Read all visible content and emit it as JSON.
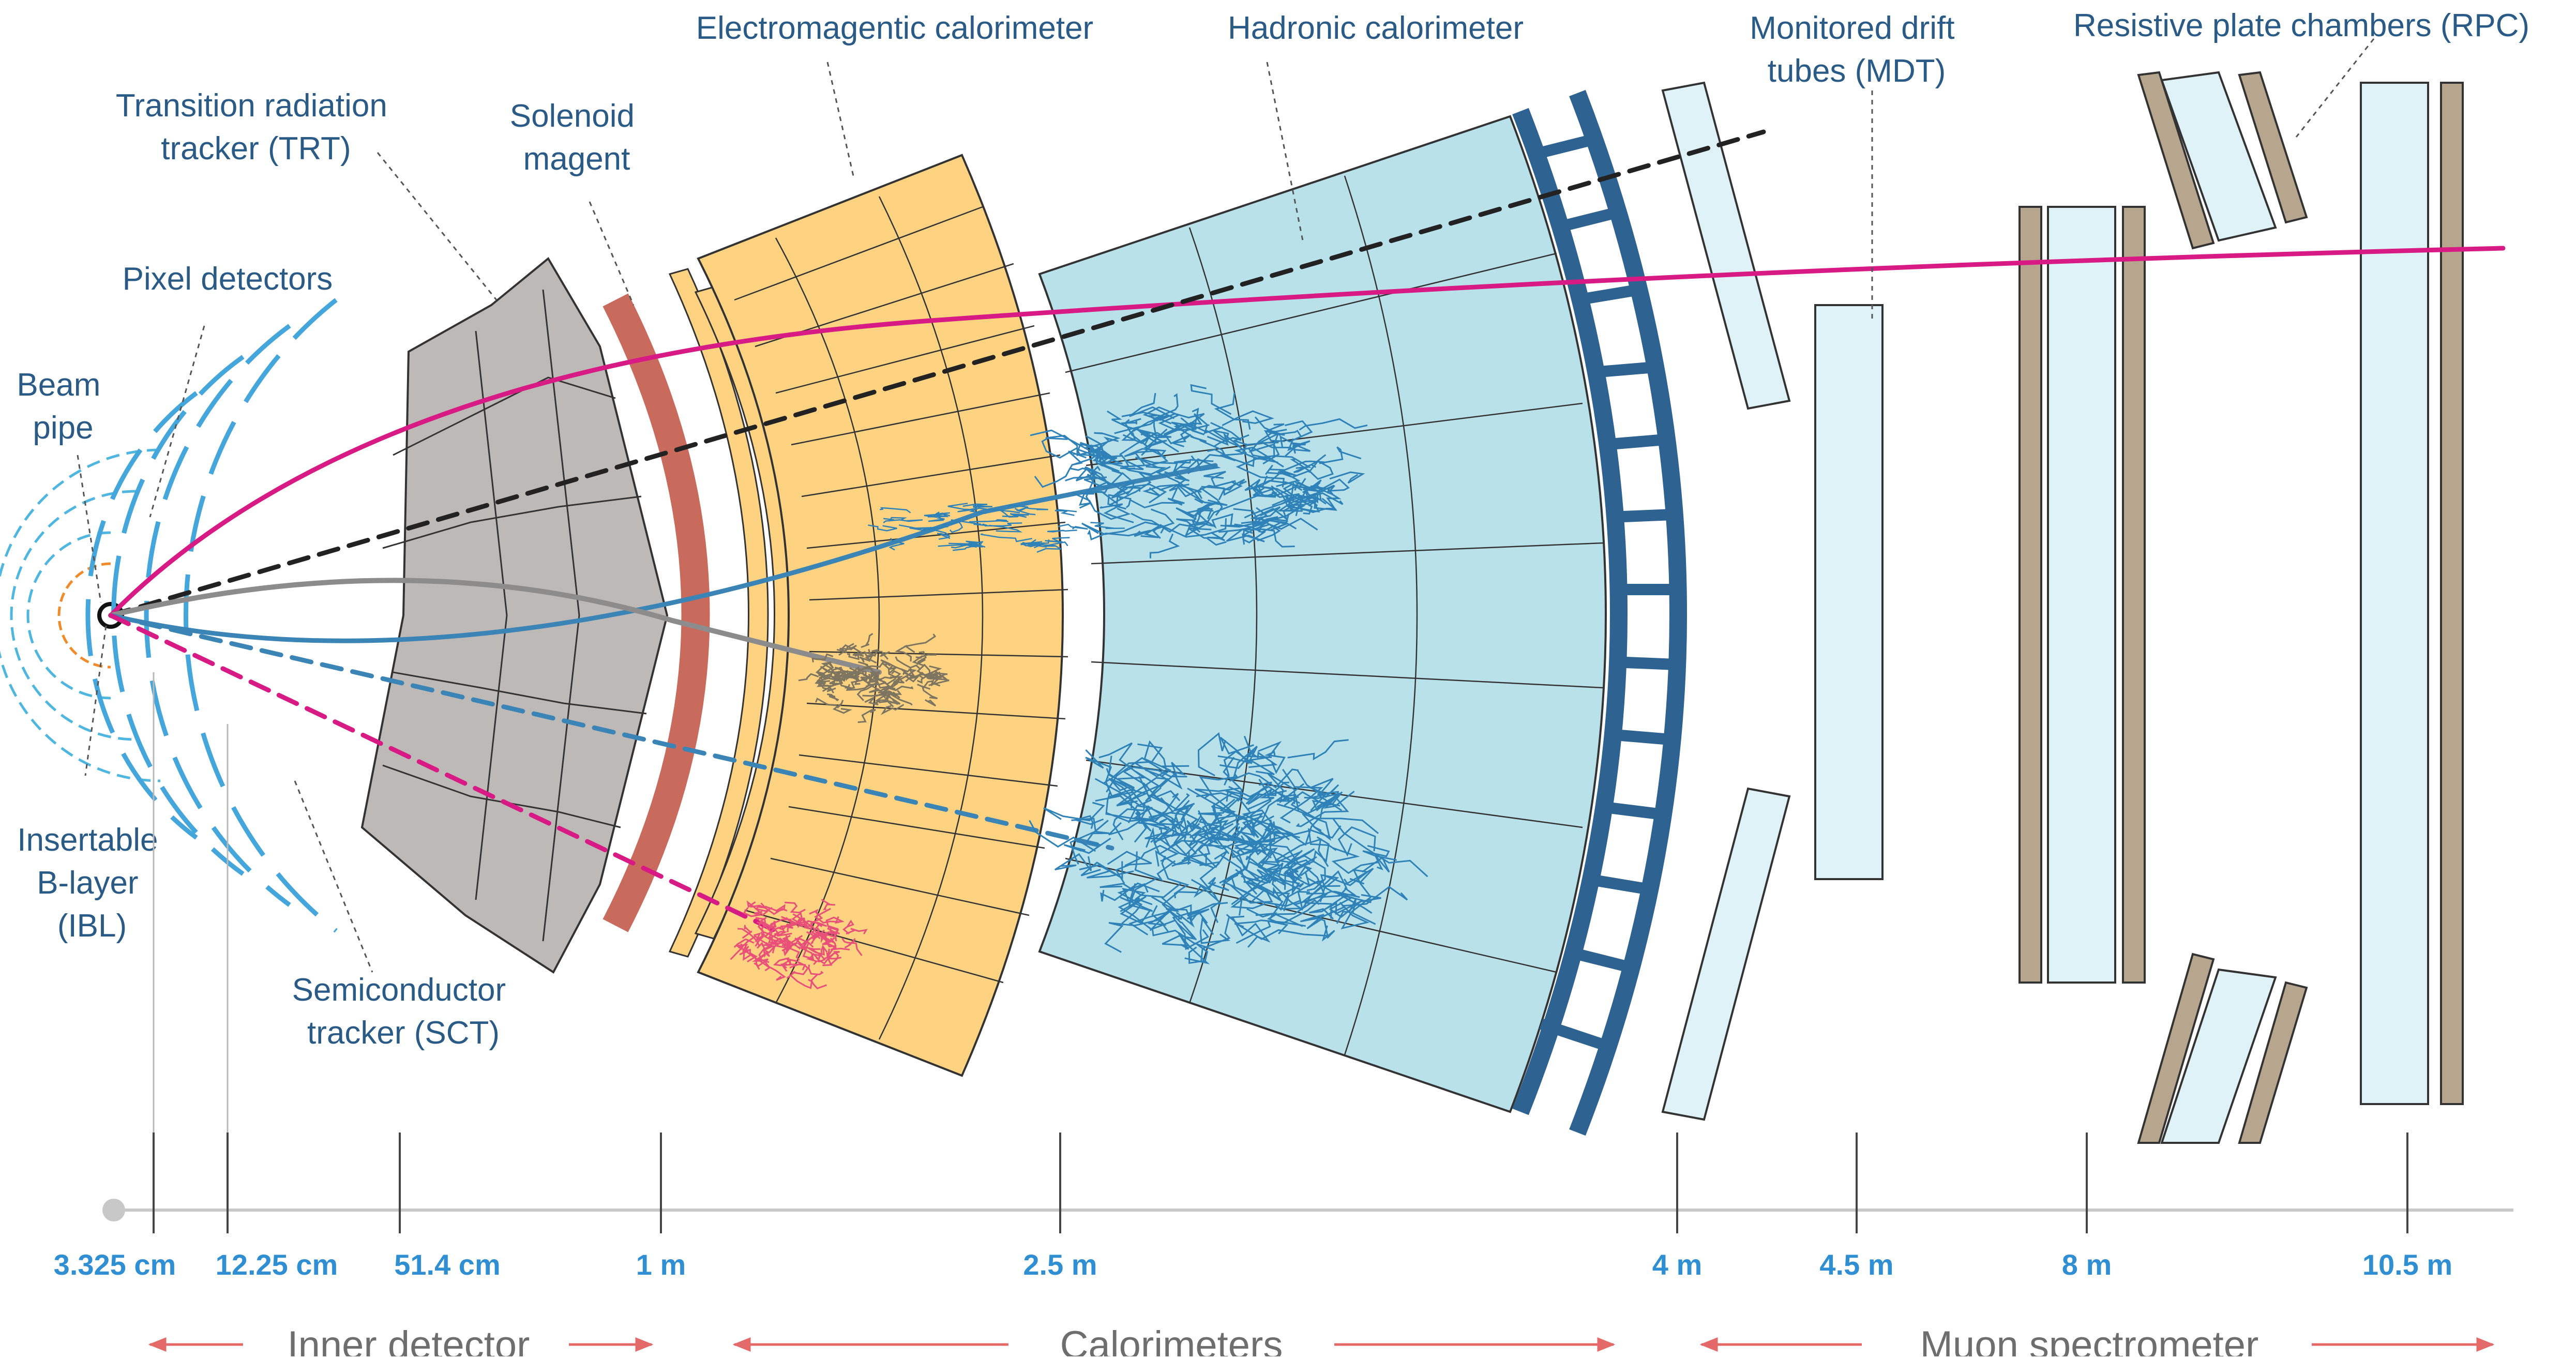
{
  "labels": {
    "beam_pipe": [
      "Beam",
      "pipe"
    ],
    "pixel": "Pixel detectors",
    "trt": [
      "Transition radiation",
      "tracker (TRT)"
    ],
    "solenoid": [
      "Solenoid",
      "magent"
    ],
    "em_cal": "Electromagentic calorimeter",
    "had_cal": "Hadronic calorimeter",
    "mdt": [
      "Monitored drift",
      "tubes (MDT)"
    ],
    "rpc": "Resistive plate chambers (RPC)",
    "ibl": [
      "Insertable",
      "B-layer",
      "(IBL)"
    ],
    "sct": [
      "Semiconductor",
      "tracker (SCT)"
    ]
  },
  "distances": [
    "3.325 cm",
    "12.25 cm",
    "51.4 cm",
    "1 m",
    "2.5 m",
    "4 m",
    "4.5 m",
    "8 m",
    "10.5 m"
  ],
  "sections": [
    "Inner detector",
    "Calorimeters",
    "Muon spectrometer"
  ],
  "colors": {
    "label_text": "#2a5a86",
    "distance_text": "#2f8fd2",
    "section_text": "#6e6e6e",
    "arrow": "#e46a6a",
    "tracker_gray": "#bdb9b6",
    "solenoid": "#c96b5c",
    "em_calorimeter": "#fdd382",
    "had_calorimeter": "#b9e1ea",
    "steel_frame": "#2e6290",
    "muon_chamber": "#def2f8",
    "rpc": "#b6a68d",
    "track_magenta": "#d81b84",
    "track_blue": "#3a84b6",
    "track_gray": "#8c8c8c",
    "track_black": "#222222",
    "electron_shower": "#e8507a",
    "photon_shower": "#7d7560",
    "hadron_shower": "#2e82b8"
  }
}
